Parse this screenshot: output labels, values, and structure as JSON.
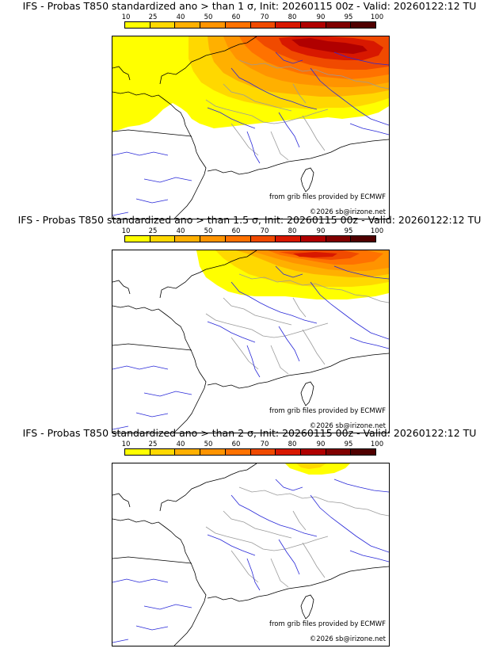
{
  "panels": [
    {
      "title": "IFS - Probas T850  standardized ano > than 1 σ, Init: 20260115 00z - Valid: 20260122:12 TU",
      "threshold": "1 σ",
      "coverage": "strong"
    },
    {
      "title": "IFS - Probas T850  standardized ano > than 1.5 σ, Init: 20260115 00z - Valid: 20260122:12 TU",
      "threshold": "1.5 σ",
      "coverage": "medium"
    },
    {
      "title": "IFS - Probas T850  standardized ano > than 2 σ, Init: 20260115 00z - Valid: 20260122:12 TU",
      "threshold": "2 σ",
      "coverage": "weak"
    }
  ],
  "colorbar": {
    "labels": [
      "10",
      "25",
      "40",
      "50",
      "60",
      "70",
      "80",
      "90",
      "95",
      "100"
    ],
    "colors": [
      "#ffff00",
      "#ffd800",
      "#ffb000",
      "#ff9400",
      "#ff7200",
      "#f04a00",
      "#d81800",
      "#b00000",
      "#800000",
      "#500000"
    ]
  },
  "credits": {
    "source": "from grib files provided by ECMWF",
    "copyright": "©2026 sb@irizone.net"
  },
  "colors": {
    "coast": "#000000",
    "rivers": "#2828d8",
    "borders": "#9a9a9a"
  }
}
